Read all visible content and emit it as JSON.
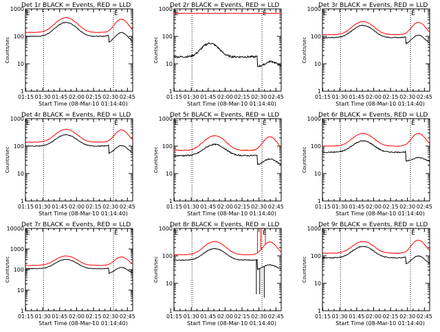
{
  "figure": {
    "title_suffix": " BLACK = Events, RED = LLD",
    "xlabel": "Start Time (08-Mar-10 01:14:40)",
    "ylabel": "Counts/sec",
    "x_ticks": [
      "01:15",
      "01:30",
      "01:45",
      "02:00",
      "02:15",
      "02:30",
      "02:45"
    ],
    "colors": {
      "events": "#000000",
      "lld": "#ff0000",
      "axes": "#000000"
    }
  },
  "chart_data": [
    {
      "type": "line",
      "title": "Det 1r",
      "time_range_min": [
        0,
        95
      ],
      "ylim": [
        1,
        1000
      ],
      "y_ticks": [
        "1",
        "10",
        "100",
        "1000"
      ],
      "markers": [
        {
          "t": 16,
          "label": ""
        },
        {
          "t": 78,
          "label": "E"
        }
      ],
      "series": [
        {
          "name": "LLD",
          "kind": "smooth",
          "base": 140,
          "peaks": [
            {
              "t": 36,
              "amp": 340,
              "w": 11
            },
            {
              "t": 85,
              "amp": 280,
              "w": 7
            }
          ],
          "noise": 0.02,
          "drop": null
        },
        {
          "name": "Events",
          "kind": "smooth",
          "base": 100,
          "peaks": [
            {
              "t": 36,
              "amp": 220,
              "w": 11
            },
            {
              "t": 85,
              "amp": 150,
              "w": 7
            }
          ],
          "noise": 0.03,
          "drop": {
            "t": 74,
            "factor": 0.55
          }
        }
      ]
    },
    {
      "type": "line",
      "title": "Det 2r",
      "time_range_min": [
        0,
        95
      ],
      "ylim": [
        1,
        1000
      ],
      "y_ticks": [
        "1",
        "10",
        "100",
        "1000"
      ],
      "markers": [
        {
          "t": 16,
          "label": ""
        },
        {
          "t": 78,
          "label": "E"
        }
      ],
      "series": [
        {
          "name": "LLD",
          "kind": "smooth",
          "base": 690,
          "peaks": [],
          "noise": 0.015,
          "drop": null
        },
        {
          "name": "Events",
          "kind": "smooth",
          "base": 18,
          "peaks": [
            {
              "t": 32,
              "amp": 38,
              "w": 9
            },
            {
              "t": 86,
              "amp": 9,
              "w": 6
            }
          ],
          "noise": 0.08,
          "drop": {
            "t": 74,
            "factor": 0.45
          }
        }
      ]
    },
    {
      "type": "line",
      "title": "Det 3r",
      "time_range_min": [
        0,
        95
      ],
      "ylim": [
        1,
        1000
      ],
      "y_ticks": [
        "1",
        "10",
        "100",
        "1000"
      ],
      "markers": [
        {
          "t": 16,
          "label": ""
        },
        {
          "t": 78,
          "label": "E"
        }
      ],
      "series": [
        {
          "name": "LLD",
          "kind": "smooth",
          "base": 115,
          "peaks": [
            {
              "t": 36,
              "amp": 230,
              "w": 11
            },
            {
              "t": 85,
              "amp": 210,
              "w": 7
            }
          ],
          "noise": 0.02,
          "drop": null
        },
        {
          "name": "Events",
          "kind": "smooth",
          "base": 90,
          "peaks": [
            {
              "t": 36,
              "amp": 160,
              "w": 11
            },
            {
              "t": 85,
              "amp": 110,
              "w": 7
            }
          ],
          "noise": 0.03,
          "drop": {
            "t": 74,
            "factor": 0.55
          }
        }
      ]
    },
    {
      "type": "line",
      "title": "Det 4r",
      "time_range_min": [
        0,
        95
      ],
      "ylim": [
        1,
        1000
      ],
      "y_ticks": [
        "1",
        "10",
        "100",
        "1000"
      ],
      "markers": [
        {
          "t": 16,
          "label": ""
        },
        {
          "t": 78,
          "label": "E"
        }
      ],
      "series": [
        {
          "name": "LLD",
          "kind": "smooth",
          "base": 140,
          "peaks": [
            {
              "t": 36,
              "amp": 270,
              "w": 11
            },
            {
              "t": 85,
              "amp": 250,
              "w": 7
            }
          ],
          "noise": 0.02,
          "drop": null
        },
        {
          "name": "Events",
          "kind": "smooth",
          "base": 100,
          "peaks": [
            {
              "t": 36,
              "amp": 160,
              "w": 11
            },
            {
              "t": 85,
              "amp": 110,
              "w": 7
            }
          ],
          "noise": 0.03,
          "drop": {
            "t": 74,
            "factor": 0.5
          }
        }
      ]
    },
    {
      "type": "line",
      "title": "Det 5r",
      "time_range_min": [
        0,
        95
      ],
      "ylim": [
        1,
        1000
      ],
      "y_ticks": [
        "1",
        "10",
        "100",
        "1000"
      ],
      "markers": [
        {
          "t": 16,
          "label": ""
        },
        {
          "t": 78,
          "label": "E"
        }
      ],
      "series": [
        {
          "name": "LLD",
          "kind": "smooth",
          "base": 70,
          "peaks": [
            {
              "t": 36,
              "amp": 170,
              "w": 11
            },
            {
              "t": 85,
              "amp": 150,
              "w": 7
            }
          ],
          "noise": 0.03,
          "drop": null
        },
        {
          "name": "Events",
          "kind": "smooth",
          "base": 45,
          "peaks": [
            {
              "t": 36,
              "amp": 70,
              "w": 11
            },
            {
              "t": 85,
              "amp": 30,
              "w": 7
            }
          ],
          "noise": 0.05,
          "drop": {
            "t": 74,
            "factor": 0.45
          }
        }
      ]
    },
    {
      "type": "line",
      "title": "Det 6r",
      "time_range_min": [
        0,
        95
      ],
      "ylim": [
        1,
        1000
      ],
      "y_ticks": [
        "1",
        "10",
        "100",
        "1000"
      ],
      "markers": [
        {
          "t": 16,
          "label": ""
        },
        {
          "t": 78,
          "label": "E"
        }
      ],
      "series": [
        {
          "name": "LLD",
          "kind": "smooth",
          "base": 100,
          "peaks": [
            {
              "t": 36,
              "amp": 190,
              "w": 11
            },
            {
              "t": 85,
              "amp": 190,
              "w": 7
            }
          ],
          "noise": 0.02,
          "drop": null
        },
        {
          "name": "Events",
          "kind": "smooth",
          "base": 60,
          "peaks": [
            {
              "t": 36,
              "amp": 95,
              "w": 11
            },
            {
              "t": 85,
              "amp": 25,
              "w": 7
            }
          ],
          "noise": 0.04,
          "drop": {
            "t": 74,
            "factor": 0.45
          }
        }
      ]
    },
    {
      "type": "line",
      "title": "Det 7r",
      "time_range_min": [
        0,
        95
      ],
      "ylim": [
        1,
        10000
      ],
      "y_ticks": [
        "1",
        "10",
        "100",
        "1000",
        "10000"
      ],
      "markers": [
        {
          "t": 16,
          "label": ""
        },
        {
          "t": 78,
          "label": "E"
        }
      ],
      "series": [
        {
          "name": "LLD",
          "kind": "smooth",
          "base": 160,
          "peaks": [
            {
              "t": 36,
              "amp": 300,
              "w": 11
            },
            {
              "t": 85,
              "amp": 250,
              "w": 7
            }
          ],
          "noise": 0.02,
          "drop": null
        },
        {
          "name": "Events",
          "kind": "smooth",
          "base": 110,
          "peaks": [
            {
              "t": 36,
              "amp": 200,
              "w": 11
            },
            {
              "t": 85,
              "amp": 120,
              "w": 7
            }
          ],
          "noise": 0.03,
          "drop": {
            "t": 74,
            "factor": 0.55
          }
        }
      ]
    },
    {
      "type": "line",
      "title": "Det 8r",
      "time_range_min": [
        0,
        95
      ],
      "ylim": [
        1,
        1000
      ],
      "y_ticks": [
        "1",
        "10",
        "100",
        "1000"
      ],
      "markers": [
        {
          "t": 16,
          "label": ""
        },
        {
          "t": 78,
          "label": "E"
        }
      ],
      "series": [
        {
          "name": "LLD",
          "kind": "smooth",
          "base": 110,
          "peaks": [
            {
              "t": 36,
              "amp": 220,
              "w": 11
            },
            {
              "t": 85,
              "amp": 210,
              "w": 7
            }
          ],
          "noise": 0.02,
          "drop": null,
          "spikes": [
            {
              "t": 74,
              "to": 1000
            },
            {
              "t": 77,
              "to": 1000
            },
            {
              "t": 81,
              "to": 1000
            }
          ]
        },
        {
          "name": "Events",
          "kind": "smooth",
          "base": 70,
          "peaks": [
            {
              "t": 36,
              "amp": 115,
              "w": 11
            },
            {
              "t": 85,
              "amp": 35,
              "w": 7
            }
          ],
          "noise": 0.03,
          "drop": {
            "t": 74,
            "factor": 0.45
          },
          "spikes": [
            {
              "t": 73,
              "to": 4
            },
            {
              "t": 76,
              "to": 4
            },
            {
              "t": 80,
              "to": 3
            }
          ]
        }
      ]
    },
    {
      "type": "line",
      "title": "Det 9r",
      "time_range_min": [
        0,
        95
      ],
      "ylim": [
        1,
        1000
      ],
      "y_ticks": [
        "1",
        "10",
        "100",
        "1000"
      ],
      "markers": [
        {
          "t": 16,
          "label": ""
        },
        {
          "t": 78,
          "label": "E"
        }
      ],
      "series": [
        {
          "name": "LLD",
          "kind": "smooth",
          "base": 125,
          "peaks": [
            {
              "t": 36,
              "amp": 210,
              "w": 11
            },
            {
              "t": 85,
              "amp": 250,
              "w": 7
            }
          ],
          "noise": 0.02,
          "drop": null
        },
        {
          "name": "Events",
          "kind": "smooth",
          "base": 85,
          "peaks": [
            {
              "t": 36,
              "amp": 135,
              "w": 11
            },
            {
              "t": 85,
              "amp": 95,
              "w": 7
            }
          ],
          "noise": 0.03,
          "drop": {
            "t": 74,
            "factor": 0.55
          }
        }
      ]
    }
  ]
}
